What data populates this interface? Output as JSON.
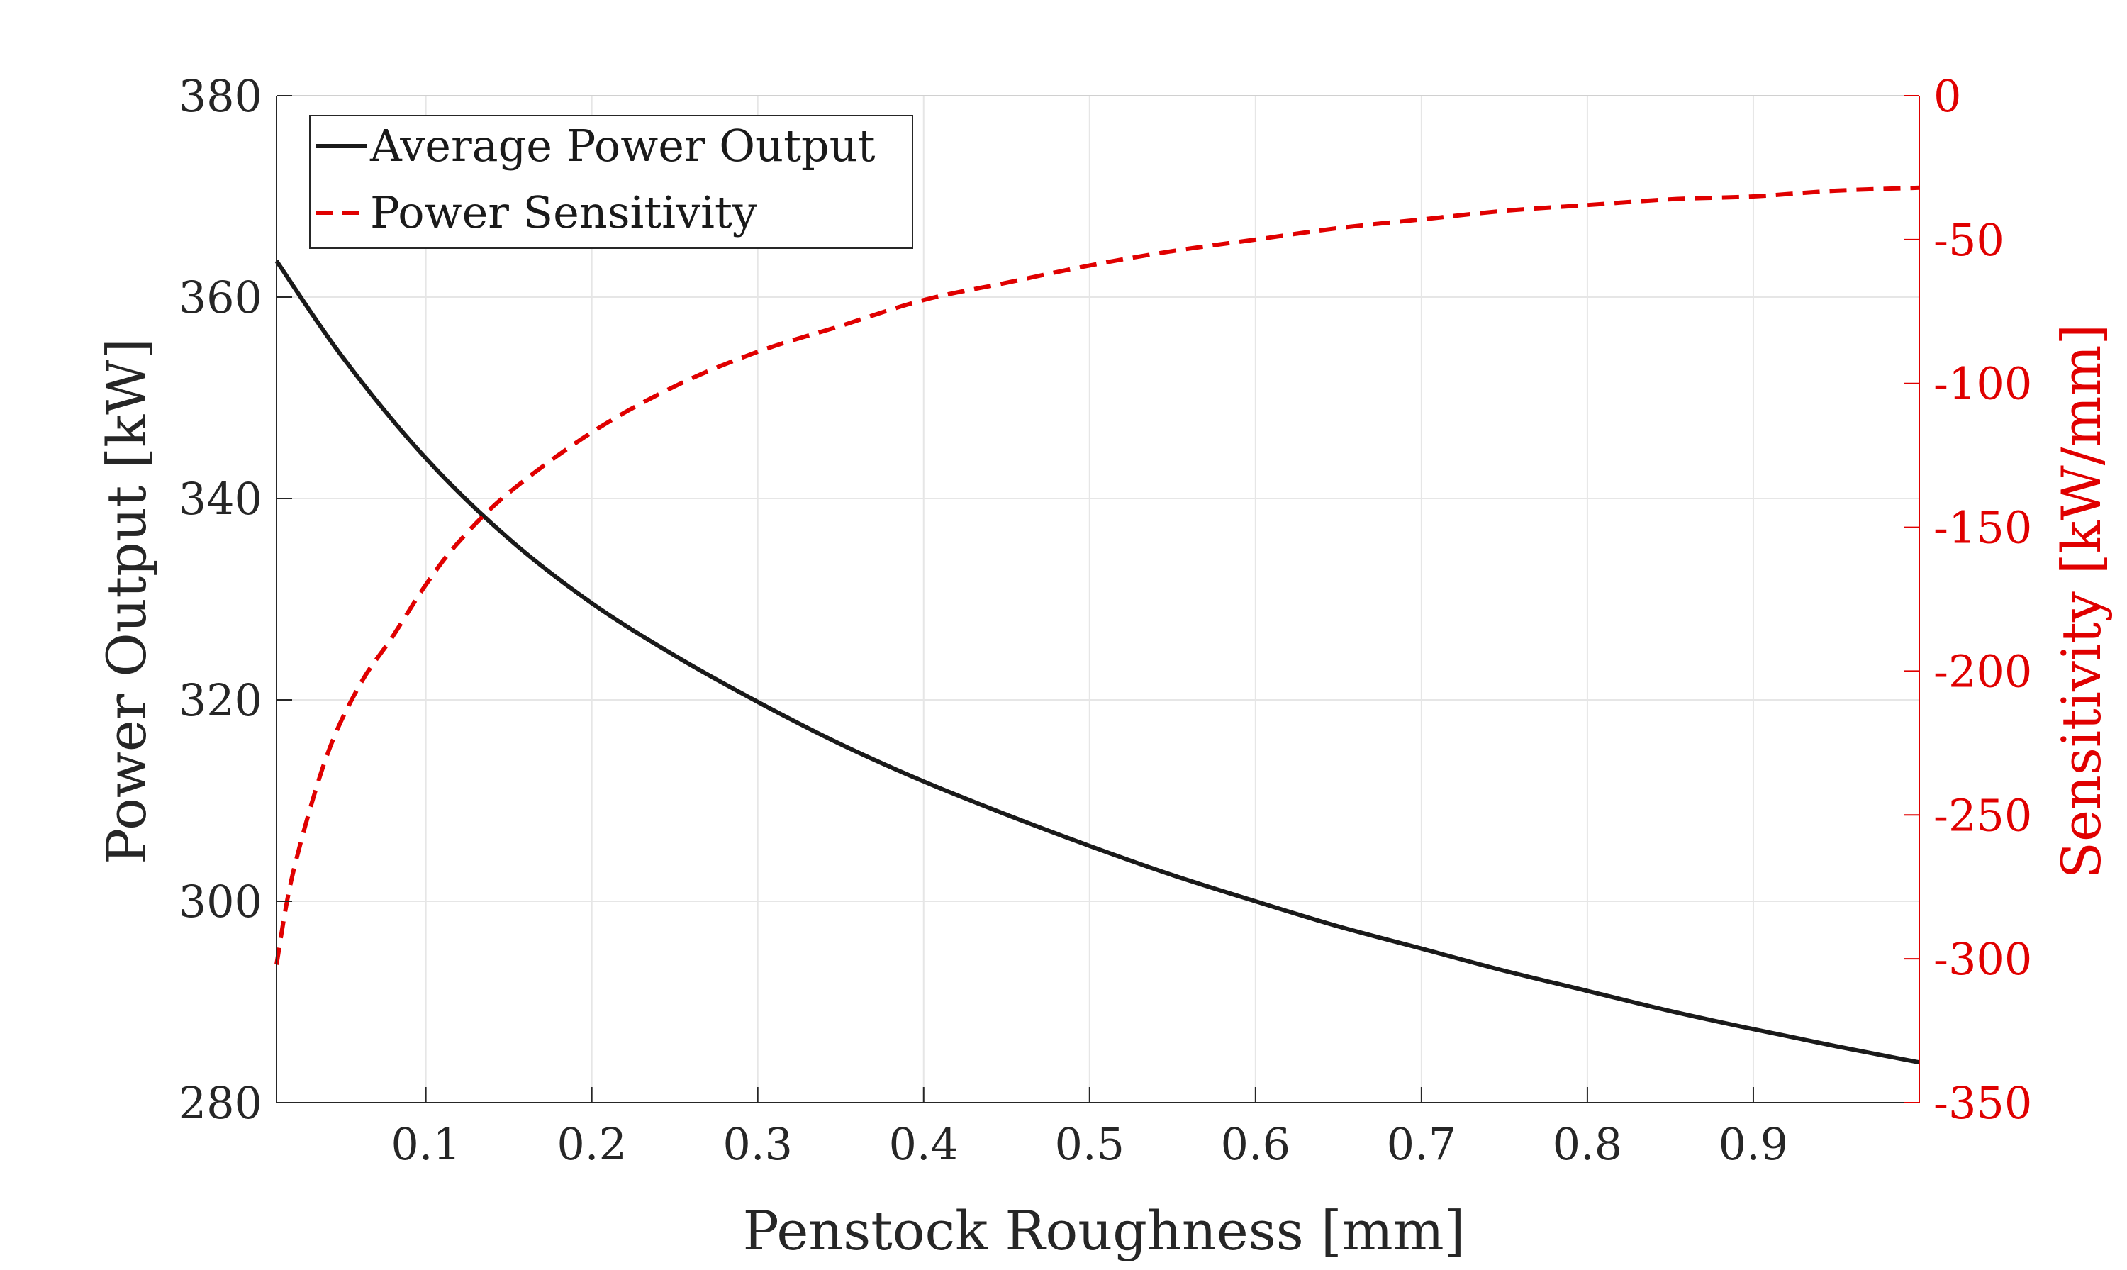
{
  "chart_data": {
    "type": "line",
    "xlabel": "Penstock Roughness [mm]",
    "ylabel_left": "Power Output [kW]",
    "ylabel_right": "Sensitivity [kW/mm]",
    "xlim": [
      0.01,
      1.0
    ],
    "ylim_left": [
      280,
      380
    ],
    "ylim_right": [
      -350,
      0
    ],
    "x_ticks": [
      0.1,
      0.2,
      0.3,
      0.4,
      0.5,
      0.6,
      0.7,
      0.8,
      0.9
    ],
    "x_tick_labels": [
      "0.1",
      "0.2",
      "0.3",
      "0.4",
      "0.5",
      "0.6",
      "0.7",
      "0.8",
      "0.9"
    ],
    "y_left_ticks": [
      280,
      300,
      320,
      340,
      360,
      380
    ],
    "y_left_tick_labels": [
      "280",
      "300",
      "320",
      "340",
      "360",
      "380"
    ],
    "y_right_ticks": [
      -350,
      -300,
      -250,
      -200,
      -150,
      -100,
      -50,
      0
    ],
    "y_right_tick_labels": [
      "-350",
      "-300",
      "-250",
      "-200",
      "-150",
      "-100",
      "-50",
      "0"
    ],
    "grid": true,
    "legend_position": "top-left",
    "series": [
      {
        "name": "Average Power Output",
        "axis": "left",
        "color": "#1a1a1a",
        "style": "solid",
        "x": [
          0.01,
          0.05,
          0.1,
          0.15,
          0.2,
          0.25,
          0.3,
          0.35,
          0.4,
          0.45,
          0.5,
          0.55,
          0.6,
          0.65,
          0.7,
          0.75,
          0.8,
          0.85,
          0.9,
          0.95,
          1.0
        ],
        "y": [
          363.6,
          354.0,
          344.0,
          336.0,
          329.6,
          324.4,
          319.8,
          315.6,
          311.9,
          308.6,
          305.5,
          302.6,
          300.0,
          297.5,
          295.3,
          293.1,
          291.1,
          289.1,
          287.3,
          285.6,
          284.0
        ]
      },
      {
        "name": "Power Sensitivity",
        "axis": "right",
        "color": "#e00000",
        "style": "dashed",
        "x": [
          0.01,
          0.02,
          0.04,
          0.06,
          0.08,
          0.1,
          0.12,
          0.15,
          0.2,
          0.25,
          0.3,
          0.35,
          0.4,
          0.45,
          0.5,
          0.55,
          0.6,
          0.65,
          0.7,
          0.75,
          0.8,
          0.85,
          0.9,
          0.95,
          1.0
        ],
        "y": [
          -302,
          -270,
          -230,
          -205,
          -188,
          -170,
          -155,
          -138,
          -117,
          -101,
          -89,
          -80,
          -71,
          -65,
          -59,
          -54,
          -50,
          -46,
          -43,
          -40,
          -38,
          -36,
          -35,
          -33,
          -32
        ]
      }
    ]
  }
}
